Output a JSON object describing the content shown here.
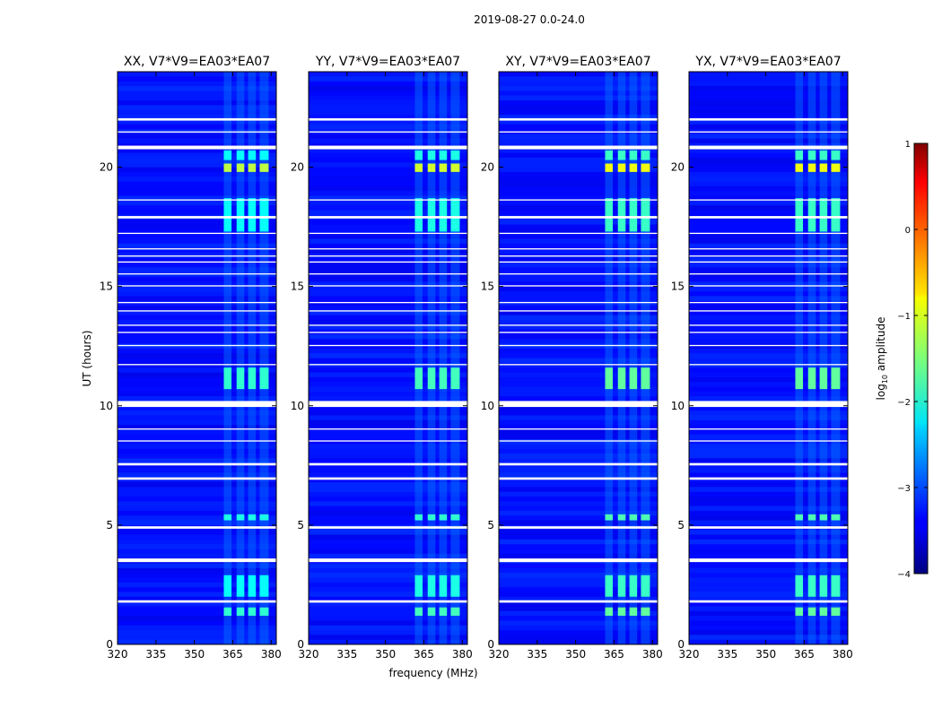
{
  "chart_data": {
    "type": "heatmap",
    "title": "2019-08-27 0.0-24.0",
    "xlabel": "frequency (MHz)",
    "ylabel": "UT (hours)",
    "xlim": [
      320,
      382
    ],
    "ylim": [
      0,
      24
    ],
    "xticks": [
      320,
      335,
      350,
      365,
      380
    ],
    "yticks": [
      0,
      5,
      10,
      15,
      20
    ],
    "colorbar": {
      "label": "log",
      "label_sub": "10",
      "label_suffix": " amplitude",
      "ticks": [
        1,
        0,
        -1,
        -2,
        -3,
        -4
      ],
      "tick_labels": [
        "1",
        "0",
        "−1",
        "−2",
        "−3",
        "−4"
      ],
      "range": [
        -4,
        1
      ],
      "colormap": "jet"
    },
    "panels": [
      {
        "title": "XX, V7*V9=EA03*EA07",
        "polarization": "XX"
      },
      {
        "title": "YY, V7*V9=EA03*EA07",
        "polarization": "YY"
      },
      {
        "title": "XY, V7*V9=EA03*EA07",
        "polarization": "XY"
      },
      {
        "title": "YX, V7*V9=EA03*EA07",
        "polarization": "YX"
      }
    ],
    "background_level": -3.3,
    "flagged_ut_intervals": [
      [
        1.75,
        1.85
      ],
      [
        3.45,
        3.6
      ],
      [
        4.85,
        4.95
      ],
      [
        6.9,
        7.0
      ],
      [
        7.5,
        7.6
      ],
      [
        8.5,
        8.55
      ],
      [
        9.0,
        9.05
      ],
      [
        9.95,
        10.2
      ],
      [
        11.7,
        11.75
      ],
      [
        12.5,
        12.55
      ],
      [
        13.05,
        13.1
      ],
      [
        13.35,
        13.4
      ],
      [
        13.95,
        14.0
      ],
      [
        14.3,
        14.35
      ],
      [
        15.0,
        15.05
      ],
      [
        15.5,
        15.55
      ],
      [
        16.0,
        16.05
      ],
      [
        16.25,
        16.3
      ],
      [
        16.55,
        16.6
      ],
      [
        17.2,
        17.25
      ],
      [
        17.85,
        17.95
      ],
      [
        18.6,
        18.65
      ],
      [
        20.75,
        20.9
      ],
      [
        21.45,
        21.5
      ],
      [
        21.95,
        22.05
      ]
    ],
    "rfi_channel_bands_mhz": [
      [
        361.5,
        364.5
      ],
      [
        366.5,
        369.5
      ],
      [
        371,
        374
      ],
      [
        375.5,
        379
      ]
    ],
    "rfi_events": [
      {
        "ut": [
          1.2,
          1.55
        ],
        "level": -1.8
      },
      {
        "ut": [
          2.0,
          2.9
        ],
        "level": -2.0
      },
      {
        "ut": [
          5.2,
          5.45
        ],
        "level": -1.9
      },
      {
        "ut": [
          10.7,
          11.6
        ],
        "level": -1.8
      },
      {
        "ut": [
          17.3,
          18.7
        ],
        "level": -2.0
      },
      {
        "ut": [
          19.8,
          20.15
        ],
        "level": -1.1
      },
      {
        "ut": [
          20.3,
          20.7
        ],
        "level": -2.0
      }
    ]
  }
}
